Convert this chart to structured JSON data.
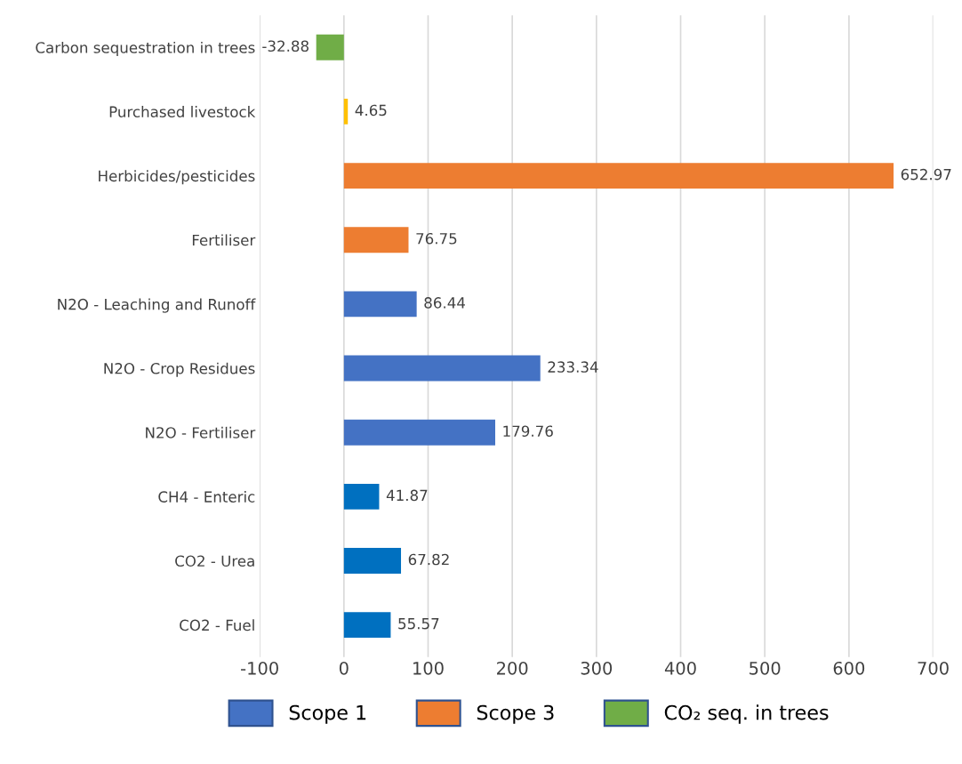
{
  "chart_data": {
    "type": "bar",
    "orientation": "horizontal",
    "stacked": true,
    "categories": [
      "Carbon sequestration in trees",
      "Purchased livestock",
      "Herbicides/pesticides",
      "Fertiliser",
      "N2O - Leaching and Runoff",
      "N2O - Crop Residues",
      "N2O - Fertiliser",
      "CH4 - Enteric",
      "CO2 - Urea",
      "CO2 - Fuel"
    ],
    "series": [
      {
        "name": "Scope 1",
        "color": "#4472c4",
        "colors": [
          null,
          null,
          null,
          null,
          "#4472c4",
          "#4472c4",
          "#4472c4",
          "#0070c0",
          "#0070c0",
          "#0070c0"
        ],
        "values": [
          null,
          null,
          null,
          null,
          86.44,
          233.34,
          179.76,
          41.87,
          67.82,
          55.57
        ]
      },
      {
        "name": "Scope 3",
        "color": "#ed7d31",
        "colors": [
          null,
          "#ffc000",
          "#ed7d31",
          "#ed7d31",
          null,
          null,
          null,
          null,
          null,
          null
        ],
        "values": [
          null,
          4.65,
          652.97,
          76.75,
          null,
          null,
          null,
          null,
          null,
          null
        ]
      },
      {
        "name": "CO₂ seq. in trees",
        "color": "#70ad47",
        "colors": [
          "#70ad47",
          null,
          null,
          null,
          null,
          null,
          null,
          null,
          null,
          null
        ],
        "values": [
          -32.88,
          null,
          null,
          null,
          null,
          null,
          null,
          null,
          null,
          null
        ]
      }
    ],
    "xlim": [
      -100,
      700
    ],
    "xticks": [
      -100,
      0,
      100,
      200,
      300,
      400,
      500,
      600,
      700
    ],
    "grid": "x",
    "legend": "bottom",
    "data_labels": true
  }
}
